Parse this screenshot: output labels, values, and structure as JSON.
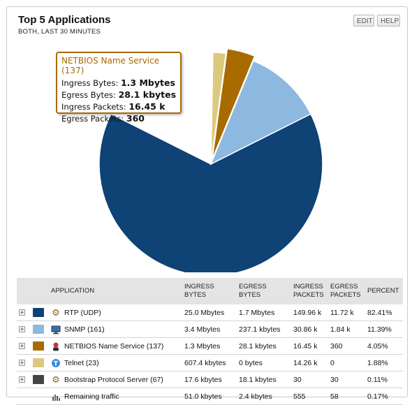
{
  "widget": {
    "title": "Top 5 Applications",
    "subtitle": "BOTH, LAST 30 MINUTES",
    "edit_label": "EDIT",
    "help_label": "HELP"
  },
  "chart_data": {
    "type": "pie",
    "slices": [
      {
        "label": "RTP (UDP)",
        "value": 82.41,
        "color": "#0f4275"
      },
      {
        "label": "SNMP (161)",
        "value": 11.39,
        "color": "#8db8e0"
      },
      {
        "label": "NETBIOS Name Service (137)",
        "value": 4.05,
        "color": "#a76b00",
        "highlighted": true
      },
      {
        "label": "Telnet (23)",
        "value": 1.88,
        "color": "#dcc97e"
      },
      {
        "label": "Bootstrap Protocol Server (67)",
        "value": 0.11,
        "color": "#444444"
      },
      {
        "label": "Remaining traffic",
        "value": 0.17,
        "color": "#dddddd"
      }
    ]
  },
  "tooltip": {
    "title": "NETBIOS Name Service (137)",
    "lines": [
      {
        "label": "Ingress Bytes:",
        "value": "1.3 Mbytes"
      },
      {
        "label": "Egress Bytes:",
        "value": "28.1 kbytes"
      },
      {
        "label": "Ingress Packets:",
        "value": "16.45 k"
      },
      {
        "label": "Egress Packets:",
        "value": "360"
      }
    ]
  },
  "table": {
    "headers": {
      "application": "APPLICATION",
      "ingress_bytes": [
        "INGRESS",
        "BYTES"
      ],
      "egress_bytes": [
        "EGRESS",
        "BYTES"
      ],
      "ingress_packets": [
        "INGRESS",
        "PACKETS"
      ],
      "egress_packets": [
        "EGRESS",
        "PACKETS"
      ],
      "percent": "PERCENT"
    },
    "rows": [
      {
        "icon": "gears-icon",
        "color": "#0f4275",
        "name": "RTP (UDP)",
        "ingress_bytes": "25.0 Mbytes",
        "egress_bytes": "1.7 Mbytes",
        "ingress_packets": "149.96 k",
        "egress_packets": "11.72 k",
        "percent": "82.41%"
      },
      {
        "icon": "monitor-icon",
        "color": "#8db8e0",
        "name": "SNMP (161)",
        "ingress_bytes": "3.4 Mbytes",
        "egress_bytes": "237.1 kbytes",
        "ingress_packets": "30.86 k",
        "egress_packets": "1.84 k",
        "percent": "11.39%"
      },
      {
        "icon": "user-icon",
        "color": "#a76b00",
        "name": "NETBIOS Name Service (137)",
        "ingress_bytes": "1.3 Mbytes",
        "egress_bytes": "28.1 kbytes",
        "ingress_packets": "16.45 k",
        "egress_packets": "360",
        "percent": "4.05%"
      },
      {
        "icon": "telnet-icon",
        "color": "#dcc97e",
        "name": "Telnet (23)",
        "ingress_bytes": "607.4 kbytes",
        "egress_bytes": "0 bytes",
        "ingress_packets": "14.26 k",
        "egress_packets": "0",
        "percent": "1.88%"
      },
      {
        "icon": "gears-icon",
        "color": "#444444",
        "name": "Bootstrap Protocol Server (67)",
        "ingress_bytes": "17.6 kbytes",
        "egress_bytes": "18.1 kbytes",
        "ingress_packets": "30",
        "egress_packets": "30",
        "percent": "0.11%"
      }
    ],
    "remaining": {
      "icon": "bar-chart-icon",
      "name": "Remaining traffic",
      "ingress_bytes": "51.0 kbytes",
      "egress_bytes": "2.4 kbytes",
      "ingress_packets": "555",
      "egress_packets": "58",
      "percent": "0.17%"
    }
  }
}
